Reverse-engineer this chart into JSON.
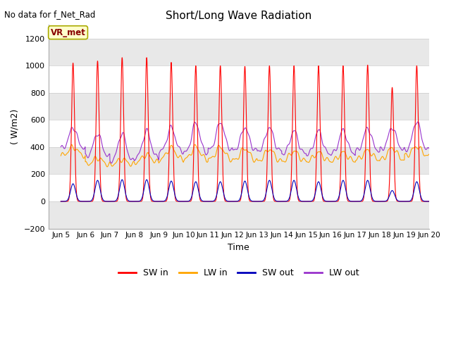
{
  "title": "Short/Long Wave Radiation",
  "xlabel": "Time",
  "ylabel": "( W/m2)",
  "no_data_text": "No data for f_Net_Rad",
  "station_label": "VR_met",
  "xlim": [
    4.5,
    20.0
  ],
  "ylim": [
    -200,
    1300
  ],
  "yticks": [
    -200,
    0,
    200,
    400,
    600,
    800,
    1000,
    1200
  ],
  "xtick_positions": [
    5,
    6,
    7,
    8,
    9,
    10,
    11,
    12,
    13,
    14,
    15,
    16,
    17,
    18,
    19,
    20
  ],
  "xtick_labels": [
    "Jun 5",
    "Jun 6",
    "Jun 7",
    "Jun 8",
    "Jun 9",
    "Jun 10",
    "Jun 11",
    "Jun 12",
    "Jun 13",
    "Jun 14",
    "Jun 15",
    "Jun 16",
    "Jun 17",
    "Jun 18",
    "Jun 19",
    "Jun 20"
  ],
  "fig_bg_color": "#ffffff",
  "plot_bg_color": "#ffffff",
  "band_color_dark": "#e8e8e8",
  "band_color_light": "#ffffff",
  "sw_in_color": "#ff0000",
  "lw_in_color": "#ffa500",
  "sw_out_color": "#0000bb",
  "lw_out_color": "#9933cc",
  "legend_entries": [
    "SW in",
    "LW in",
    "SW out",
    "LW out"
  ],
  "n_days": 15,
  "sw_in_peaks": [
    1020,
    1035,
    1060,
    1060,
    1025,
    1000,
    1000,
    995,
    1000,
    1000,
    1000,
    1000,
    1005,
    840,
    1000
  ],
  "sw_out_peaks": [
    130,
    155,
    160,
    160,
    150,
    145,
    145,
    150,
    155,
    155,
    145,
    155,
    155,
    80,
    145
  ],
  "lw_in_base": [
    335,
    270,
    270,
    285,
    305,
    305,
    305,
    300,
    295,
    295,
    295,
    295,
    305,
    305,
    335
  ],
  "lw_in_peaks": [
    400,
    320,
    310,
    345,
    395,
    400,
    400,
    390,
    385,
    370,
    360,
    360,
    375,
    395,
    405
  ],
  "lw_out_base": [
    390,
    330,
    295,
    320,
    365,
    355,
    380,
    375,
    370,
    350,
    345,
    350,
    370,
    380,
    375
  ],
  "lw_out_peaks": [
    545,
    500,
    500,
    520,
    545,
    580,
    585,
    545,
    545,
    520,
    520,
    525,
    540,
    545,
    590
  ]
}
